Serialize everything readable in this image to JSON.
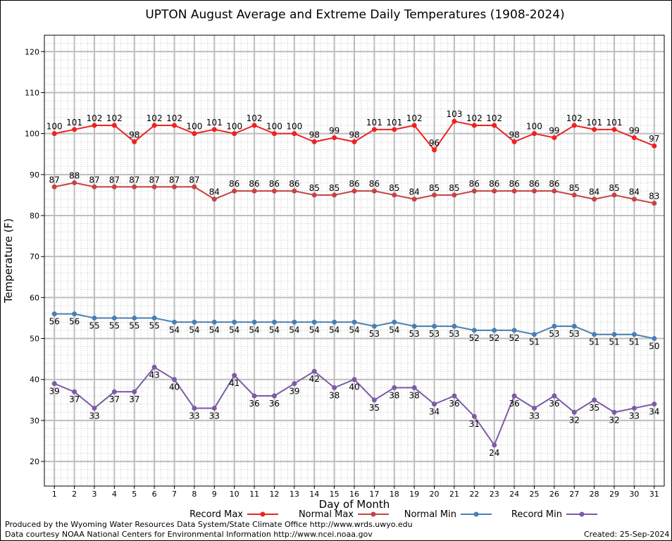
{
  "chart_data": {
    "type": "line",
    "title": "UPTON August Average and Extreme Daily Temperatures (1908-2024)",
    "xlabel": "Day of Month",
    "ylabel": "Temperature (F)",
    "x": [
      1,
      2,
      3,
      4,
      5,
      6,
      7,
      8,
      9,
      10,
      11,
      12,
      13,
      14,
      15,
      16,
      17,
      18,
      19,
      20,
      21,
      22,
      23,
      24,
      25,
      26,
      27,
      28,
      29,
      30,
      31
    ],
    "xlim": [
      0.5,
      31.5
    ],
    "ylim": [
      14,
      124
    ],
    "yticks": [
      20,
      30,
      40,
      50,
      60,
      70,
      80,
      90,
      100,
      110,
      120
    ],
    "grid": true,
    "legend_position": "bottom",
    "series": [
      {
        "name": "Record Max",
        "color": "#ee2222",
        "label_position": "above",
        "values": [
          100,
          101,
          102,
          102,
          98,
          102,
          102,
          100,
          101,
          100,
          102,
          100,
          100,
          98,
          99,
          98,
          101,
          101,
          102,
          96,
          103,
          102,
          102,
          98,
          100,
          99,
          102,
          101,
          101,
          99,
          97
        ]
      },
      {
        "name": "Normal Max",
        "color": "#c44444",
        "label_position": "above",
        "values": [
          87,
          88,
          87,
          87,
          87,
          87,
          87,
          87,
          84,
          86,
          86,
          86,
          86,
          85,
          85,
          86,
          86,
          85,
          84,
          85,
          85,
          86,
          86,
          86,
          86,
          86,
          85,
          84,
          85,
          84,
          83
        ]
      },
      {
        "name": "Normal Min",
        "color": "#4a7fb5",
        "label_position": "below",
        "values": [
          56,
          56,
          55,
          55,
          55,
          55,
          54,
          54,
          54,
          54,
          54,
          54,
          54,
          54,
          54,
          54,
          53,
          54,
          53,
          53,
          53,
          52,
          52,
          52,
          51,
          53,
          53,
          51,
          51,
          51,
          50
        ]
      },
      {
        "name": "Record Min",
        "color": "#7d5ba6",
        "label_position": "below",
        "values": [
          39,
          37,
          33,
          37,
          37,
          43,
          40,
          33,
          33,
          41,
          36,
          36,
          39,
          42,
          38,
          40,
          35,
          38,
          38,
          34,
          36,
          31,
          24,
          36,
          33,
          36,
          32,
          35,
          32,
          33,
          34
        ]
      }
    ]
  },
  "footer": {
    "produced_by": "Produced by the Wyoming Water Resources Data System/State Climate Office http://www.wrds.uwyo.edu",
    "courtesy": "Data courtesy NOAA National Centers for Environmental Information http://www.ncei.noaa.gov",
    "created": "Created: 25-Sep-2024"
  }
}
